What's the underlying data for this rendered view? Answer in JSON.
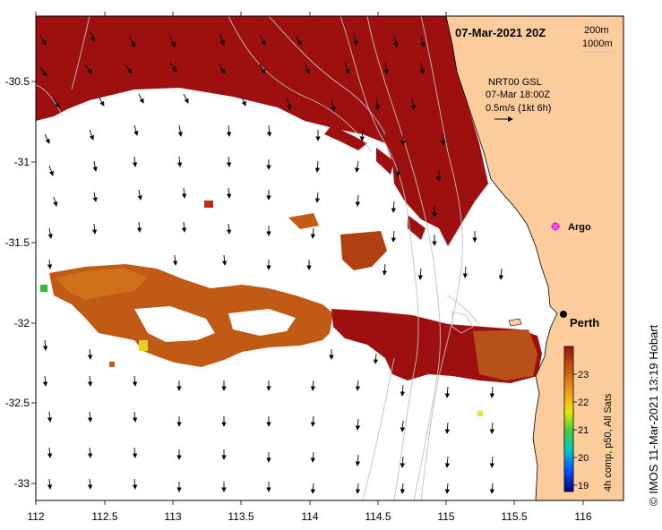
{
  "title": "07-Mar-2021 20Z",
  "depth_legend": {
    "line1": "200m",
    "line2": "1000m"
  },
  "wind_info": {
    "line1": "NRT00 GSL",
    "line2": "07-Mar 18:00Z",
    "line3": "0.5m/s (1kt 6h)"
  },
  "argo_label": "Argo",
  "city_label": "Perth",
  "colorbar": {
    "title": "4h comp, p50, All Sats",
    "ticks": [
      "19",
      "20",
      "21",
      "22",
      "23"
    ],
    "min": 18.8,
    "max": 23.8,
    "colors": [
      "#000080",
      "#0050ff",
      "#00c8c8",
      "#40d040",
      "#e8e800",
      "#f0a020",
      "#d06010",
      "#9e1010"
    ]
  },
  "x_axis": {
    "ticks": [
      "112",
      "112.5",
      "113",
      "113.5",
      "114",
      "114.5",
      "115",
      "115.5",
      "116"
    ],
    "range": [
      112,
      116.3
    ]
  },
  "y_axis": {
    "ticks": [
      "-30.5",
      "-31",
      "-31.5",
      "-32",
      "-32.5",
      "-33"
    ],
    "range": [
      -33.1,
      -30.1
    ]
  },
  "credit": "© IMOS 11-Mar-2021 13:19 Hobart",
  "colors": {
    "land": "#fccc9c",
    "hot": "#9e1010",
    "cloud": "#ffffff",
    "argo": "#ff00ff"
  }
}
